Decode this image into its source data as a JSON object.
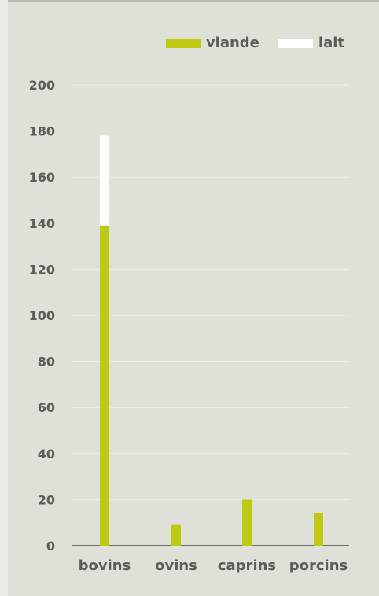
{
  "chart_data": {
    "type": "bar",
    "stacked": true,
    "categories": [
      "bovins",
      "ovins",
      "caprins",
      "porcins"
    ],
    "series": [
      {
        "name": "viande",
        "values": [
          139,
          9,
          20,
          14
        ],
        "color": "#c0c912"
      },
      {
        "name": "lait",
        "values": [
          39,
          0,
          0,
          0
        ],
        "color": "#ffffff"
      }
    ],
    "yticks": [
      "0",
      "20",
      "40",
      "60",
      "80",
      "100",
      "120",
      "140",
      "160",
      "180",
      "200"
    ],
    "ylim": [
      0,
      200
    ],
    "grid": true,
    "legend_position": "top-right",
    "title": "",
    "xlabel": "",
    "ylabel": ""
  },
  "colors": {
    "background": "#dfe1d8",
    "grid": "#eef0e8",
    "axis": "#6d706a",
    "text": "#5b5e58"
  }
}
